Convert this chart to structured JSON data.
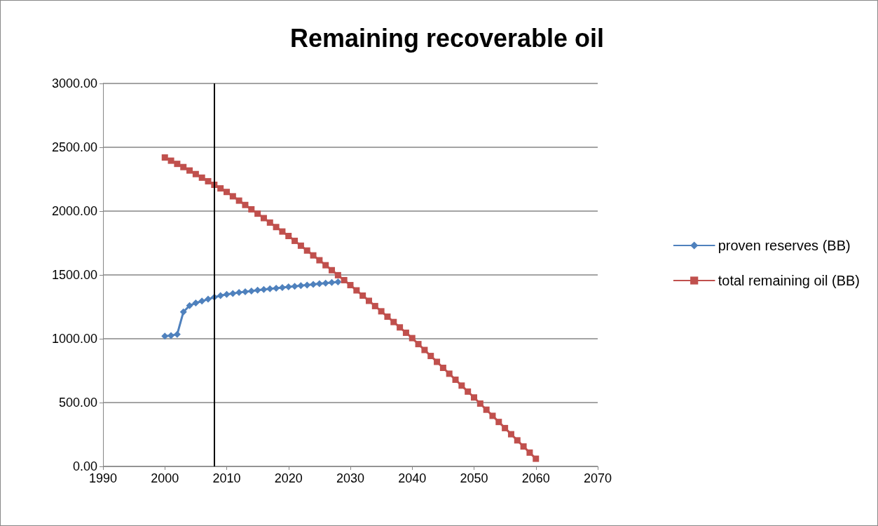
{
  "chart_data": {
    "type": "line",
    "title": "Remaining recoverable oil",
    "x": [
      2000,
      2001,
      2002,
      2003,
      2004,
      2005,
      2006,
      2007,
      2008,
      2009,
      2010,
      2011,
      2012,
      2013,
      2014,
      2015,
      2016,
      2017,
      2018,
      2019,
      2020,
      2021,
      2022,
      2023,
      2024,
      2025,
      2026,
      2027,
      2028,
      2029,
      2030,
      2031,
      2032,
      2033,
      2034,
      2035,
      2036,
      2037,
      2038,
      2039,
      2040,
      2041,
      2042,
      2043,
      2044,
      2045,
      2046,
      2047,
      2048,
      2049,
      2050,
      2051,
      2052,
      2053,
      2054,
      2055,
      2056,
      2057,
      2058,
      2059,
      2060
    ],
    "series": [
      {
        "name": "proven reserves (BB)",
        "color": "#4f81bd",
        "marker": "diamond",
        "x": [
          2000,
          2001,
          2002,
          2003,
          2004,
          2005,
          2006,
          2007,
          2008,
          2009,
          2010,
          2011,
          2012,
          2013,
          2014,
          2015,
          2016,
          2017,
          2018,
          2019,
          2020,
          2021,
          2022,
          2023,
          2024,
          2025,
          2026,
          2027,
          2028
        ],
        "values": [
          1020,
          1025,
          1035,
          1210,
          1260,
          1280,
          1295,
          1310,
          1325,
          1338,
          1348,
          1355,
          1362,
          1368,
          1374,
          1380,
          1386,
          1391,
          1396,
          1401,
          1406,
          1411,
          1416,
          1421,
          1426,
          1431,
          1436,
          1441,
          1445
        ]
      },
      {
        "name": "total remaining oil (BB)",
        "color": "#c0504d",
        "marker": "square",
        "values": [
          2420,
          2395,
          2370,
          2345,
          2318,
          2290,
          2262,
          2234,
          2206,
          2178,
          2150,
          2116,
          2082,
          2048,
          2014,
          1980,
          1945,
          1910,
          1875,
          1840,
          1805,
          1767,
          1729,
          1691,
          1653,
          1615,
          1576,
          1537,
          1498,
          1459,
          1420,
          1379,
          1338,
          1297,
          1256,
          1215,
          1173,
          1131,
          1089,
          1047,
          1005,
          958,
          912,
          865,
          819,
          772,
          726,
          679,
          633,
          586,
          540,
          492,
          444,
          396,
          348,
          300,
          252,
          204,
          156,
          108,
          60
        ]
      }
    ],
    "xlim": [
      1990,
      2070
    ],
    "xticks": [
      1990,
      2000,
      2010,
      2020,
      2030,
      2040,
      2050,
      2060,
      2070
    ],
    "ylim": [
      0,
      3000
    ],
    "yticks": [
      {
        "value": 0,
        "label": "0.00"
      },
      {
        "value": 500,
        "label": "500.00"
      },
      {
        "value": 1000,
        "label": "1000.00"
      },
      {
        "value": 1500,
        "label": "1500.00"
      },
      {
        "value": 2000,
        "label": "2000.00"
      },
      {
        "value": 2500,
        "label": "2500.00"
      },
      {
        "value": 3000,
        "label": "3000.00"
      }
    ],
    "ref_lines": [
      {
        "axis": "x",
        "value": 2008,
        "color": "#000000"
      }
    ],
    "grid": "y",
    "legend": "right"
  }
}
